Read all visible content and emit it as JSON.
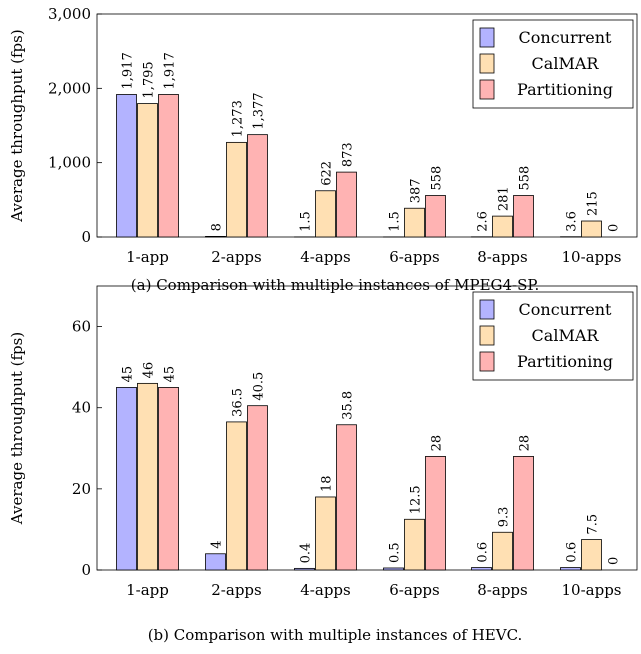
{
  "colors": {
    "series": [
      "#b3b3ff",
      "#ffe0b3",
      "#ffb3b3"
    ],
    "stroke": "#000000"
  },
  "chart_data": [
    {
      "type": "bar",
      "caption": "(a) Comparison with multiple instances of MPEG4-SP.",
      "ylabel": "Average throughput (fps)",
      "xlabel": "",
      "ylim": [
        0,
        3000
      ],
      "yticks": [
        0,
        1000,
        2000,
        3000
      ],
      "ytick_labels": [
        "0",
        "1,000",
        "2,000",
        "3,000"
      ],
      "categories": [
        "1-app",
        "2-apps",
        "4-apps",
        "6-apps",
        "8-apps",
        "10-apps"
      ],
      "legend_position": "top-right",
      "grid": false,
      "series": [
        {
          "name": "Concurrent",
          "values": [
            1917,
            8,
            1.5,
            1.5,
            2.6,
            3.6
          ],
          "labels": [
            "1,917",
            "8",
            "1.5",
            "1.5",
            "2.6",
            "3.6"
          ]
        },
        {
          "name": "CalMAR",
          "values": [
            1795,
            1273,
            622,
            387,
            281,
            215
          ],
          "labels": [
            "1,795",
            "1,273",
            "622",
            "387",
            "281",
            "215"
          ]
        },
        {
          "name": "Partitioning",
          "values": [
            1917,
            1377,
            873,
            558,
            558,
            0
          ],
          "labels": [
            "1,917",
            "1,377",
            "873",
            "558",
            "558",
            "0"
          ]
        }
      ]
    },
    {
      "type": "bar",
      "caption": "(b) Comparison with multiple instances of HEVC.",
      "ylabel": "Average throughput (fps)",
      "xlabel": "",
      "ylim": [
        0,
        70
      ],
      "yticks": [
        0,
        20,
        40,
        60
      ],
      "ytick_labels": [
        "0",
        "20",
        "40",
        "60"
      ],
      "categories": [
        "1-app",
        "2-apps",
        "4-apps",
        "6-apps",
        "8-apps",
        "10-apps"
      ],
      "legend_position": "top-right",
      "grid": false,
      "series": [
        {
          "name": "Concurrent",
          "values": [
            45,
            4,
            0.4,
            0.5,
            0.6,
            0.6
          ],
          "labels": [
            "45",
            "4",
            "0.4",
            "0.5",
            "0.6",
            "0.6"
          ]
        },
        {
          "name": "CalMAR",
          "values": [
            46,
            36.5,
            18,
            12.5,
            9.3,
            7.5
          ],
          "labels": [
            "46",
            "36.5",
            "18",
            "12.5",
            "9.3",
            "7.5"
          ]
        },
        {
          "name": "Partitioning",
          "values": [
            45,
            40.5,
            35.8,
            28,
            28,
            0
          ],
          "labels": [
            "45",
            "40.5",
            "35.8",
            "28",
            "28",
            "0"
          ]
        }
      ]
    }
  ]
}
